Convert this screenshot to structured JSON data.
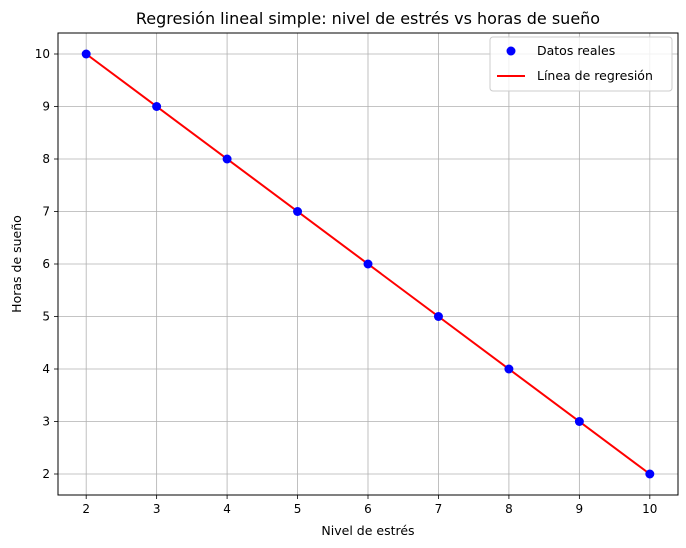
{
  "chart_data": {
    "type": "scatter",
    "title": "Regresión lineal simple: nivel de estrés vs horas de sueño",
    "xlabel": "Nivel de estrés",
    "ylabel": "Horas de sueño",
    "xlim": [
      1.6,
      10.4
    ],
    "ylim": [
      1.6,
      10.4
    ],
    "xticks": [
      2,
      3,
      4,
      5,
      6,
      7,
      8,
      9,
      10
    ],
    "yticks": [
      2,
      3,
      4,
      5,
      6,
      7,
      8,
      9,
      10
    ],
    "grid": true,
    "legend_position": "top-right",
    "series": [
      {
        "name": "Datos reales",
        "kind": "scatter",
        "color": "#0000ff",
        "x": [
          2,
          3,
          4,
          5,
          6,
          7,
          8,
          9,
          10
        ],
        "y": [
          10,
          9,
          8,
          7,
          6,
          5,
          4,
          3,
          2
        ]
      },
      {
        "name": "Línea de regresión",
        "kind": "line",
        "color": "#ff0000",
        "x": [
          2,
          10
        ],
        "y": [
          10,
          2
        ]
      }
    ]
  }
}
